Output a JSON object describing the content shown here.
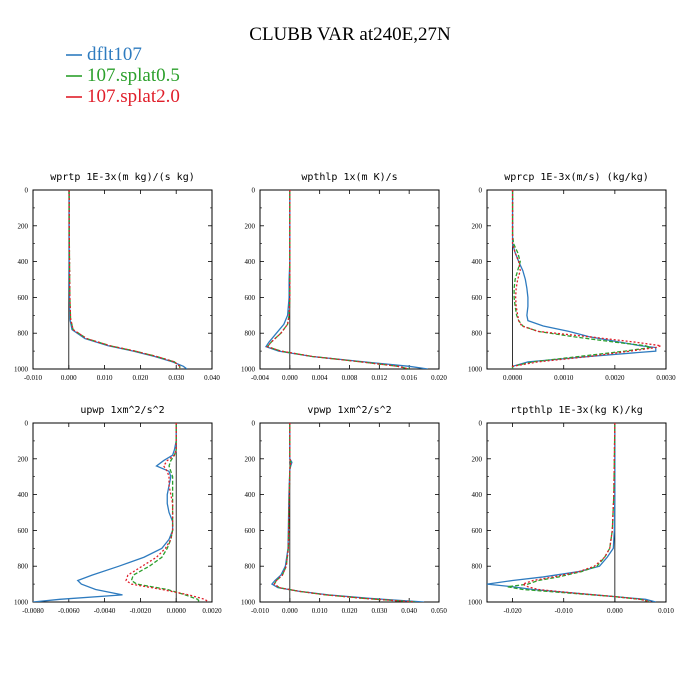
{
  "figure": {
    "title": "CLUBB VAR at240E,27N"
  },
  "legend": [
    {
      "label": "dflt107",
      "color": "#2e7bbf"
    },
    {
      "label": "107.splat0.5",
      "color": "#2ca02c"
    },
    {
      "label": "107.splat2.0",
      "color": "#e01e2a"
    }
  ],
  "chart_data": [
    {
      "type": "line",
      "title": "wprtp  1E-3x(m kg)/(s kg)",
      "xlim": [
        -0.01,
        0.04
      ],
      "ylim": [
        1000,
        0
      ],
      "xticks": [
        "-0.010",
        "0.000",
        "0.010",
        "0.020",
        "0.030",
        "0.040"
      ],
      "yticks": [
        "0",
        "200",
        "400",
        "600",
        "800",
        "1000"
      ],
      "y": [
        0,
        200,
        400,
        600,
        720,
        780,
        830,
        870,
        900,
        930,
        960,
        985,
        1000
      ],
      "series": [
        {
          "name": "dflt107",
          "values": [
            0.0001,
            0.0001,
            0.0001,
            0.0002,
            0.0003,
            0.0009,
            0.0045,
            0.011,
            0.018,
            0.024,
            0.029,
            0.032,
            0.033
          ]
        },
        {
          "name": "107.splat0.5",
          "values": [
            0.0001,
            0.0001,
            0.0002,
            0.0003,
            0.0005,
            0.0012,
            0.005,
            0.0115,
            0.0185,
            0.0245,
            0.0295,
            0.031,
            0.031
          ]
        },
        {
          "name": "107.splat2.0",
          "values": [
            0.0001,
            0.0001,
            0.0002,
            0.0003,
            0.0005,
            0.0012,
            0.005,
            0.0115,
            0.0185,
            0.0245,
            0.0295,
            0.031,
            0.031
          ]
        }
      ]
    },
    {
      "type": "line",
      "title": "wpthlp  1x(m K)/s",
      "xlim": [
        -0.004,
        0.02
      ],
      "ylim": [
        1000,
        0
      ],
      "xticks": [
        "-0.004",
        "0.000",
        "0.004",
        "0.008",
        "0.012",
        "0.016",
        "0.020"
      ],
      "yticks": [
        "0",
        "200",
        "400",
        "600",
        "800",
        "1000"
      ],
      "y": [
        0,
        200,
        400,
        500,
        600,
        700,
        750,
        800,
        850,
        875,
        900,
        930,
        960,
        985,
        1000
      ],
      "series": [
        {
          "name": "dflt107",
          "values": [
            0.0,
            0.0,
            0.0,
            -0.0001,
            -0.0001,
            -0.0003,
            -0.0008,
            -0.0018,
            -0.0028,
            -0.0032,
            -0.0015,
            0.003,
            0.01,
            0.016,
            0.0185
          ]
        },
        {
          "name": "107.splat0.5",
          "values": [
            0.0,
            0.0,
            0.0,
            0.0,
            0.0,
            -0.0001,
            -0.0003,
            -0.0012,
            -0.0025,
            -0.003,
            -0.0012,
            0.003,
            0.0095,
            0.0145,
            0.016
          ]
        },
        {
          "name": "107.splat2.0",
          "values": [
            0.0,
            0.0,
            0.0,
            0.0,
            0.0,
            -0.0001,
            -0.0003,
            -0.0012,
            -0.0025,
            -0.003,
            -0.0012,
            0.003,
            0.0095,
            0.0145,
            0.016
          ]
        }
      ]
    },
    {
      "type": "line",
      "title": "wprcp  1E-3x(m/s) (kg/kg)",
      "xlim": [
        -0.0005,
        0.003
      ],
      "ylim": [
        1000,
        0
      ],
      "xticks": [
        "0.0000",
        "0.0010",
        "0.0020",
        "0.0030"
      ],
      "yticks": [
        "0",
        "200",
        "400",
        "600",
        "800",
        "1000"
      ],
      "y": [
        0,
        250,
        300,
        350,
        400,
        450,
        500,
        550,
        600,
        650,
        700,
        730,
        760,
        790,
        820,
        850,
        870,
        880,
        900,
        930,
        960,
        985,
        1000
      ],
      "series": [
        {
          "name": "dflt107",
          "values": [
            0.0,
            0.0,
            0.0,
            5e-05,
            0.00012,
            0.0002,
            0.00025,
            0.00028,
            0.0003,
            0.0003,
            0.00028,
            0.0003,
            0.0006,
            0.0011,
            0.0015,
            0.0021,
            0.0025,
            0.0028,
            0.0028,
            0.0015,
            0.0003,
            0.0,
            0.0
          ]
        },
        {
          "name": "107.splat0.5",
          "values": [
            0.0,
            0.0,
            2e-05,
            0.0001,
            0.00015,
            0.0001,
            5e-05,
            3e-05,
            3e-05,
            5e-05,
            8e-05,
            0.00012,
            0.0002,
            0.0005,
            0.0012,
            0.002,
            0.0026,
            0.0027,
            0.0022,
            0.0013,
            0.0004,
            0.0,
            0.0
          ]
        },
        {
          "name": "107.splat2.0",
          "values": [
            0.0,
            0.0,
            0.0,
            5e-05,
            0.00012,
            0.00015,
            0.0001,
            7e-05,
            6e-05,
            7e-05,
            0.0001,
            0.00012,
            0.00018,
            0.0005,
            0.0015,
            0.0024,
            0.0029,
            0.0028,
            0.0023,
            0.0015,
            0.0005,
            0.0,
            0.0
          ]
        }
      ]
    },
    {
      "type": "line",
      "title": "upwp  1xm^2/s^2",
      "xlim": [
        -0.008,
        0.002
      ],
      "ylim": [
        1000,
        0
      ],
      "xticks": [
        "-0.0080",
        "-0.0060",
        "-0.0040",
        "-0.0020",
        "0.0000",
        "0.0020"
      ],
      "yticks": [
        "0",
        "200",
        "400",
        "600",
        "800",
        "1000"
      ],
      "y": [
        0,
        100,
        150,
        180,
        210,
        240,
        270,
        300,
        350,
        400,
        450,
        500,
        550,
        600,
        650,
        700,
        750,
        800,
        850,
        880,
        900,
        930,
        960,
        985,
        1000
      ],
      "series": [
        {
          "name": "dflt107",
          "values": [
            0.0,
            0.0,
            -0.0001,
            -0.0002,
            -0.0007,
            -0.0011,
            -0.0004,
            -0.0003,
            -0.0004,
            -0.0005,
            -0.0005,
            -0.0004,
            -0.0002,
            -0.0002,
            -0.0004,
            -0.0008,
            -0.0018,
            -0.0032,
            -0.0047,
            -0.0055,
            -0.0053,
            -0.0045,
            -0.003,
            -0.0065,
            -0.008
          ]
        },
        {
          "name": "107.splat0.5",
          "values": [
            0.0,
            0.0,
            0.0,
            -0.0001,
            -0.0003,
            -0.0004,
            -0.0003,
            -0.0002,
            -0.0002,
            -0.0002,
            -0.0002,
            -0.0002,
            -0.0002,
            -0.0002,
            -0.0003,
            -0.0005,
            -0.0008,
            -0.0015,
            -0.0024,
            -0.0025,
            -0.0022,
            -0.0005,
            0.0005,
            0.0012,
            0.0013
          ]
        },
        {
          "name": "107.splat2.0",
          "values": [
            0.0,
            0.0,
            0.0,
            -0.0001,
            -0.0005,
            -0.0007,
            -0.0005,
            -0.0004,
            -0.0004,
            -0.0003,
            -0.0002,
            -0.0002,
            -0.0002,
            -0.0002,
            -0.0003,
            -0.0006,
            -0.0011,
            -0.0019,
            -0.0027,
            -0.0028,
            -0.0025,
            -0.0008,
            0.0007,
            0.0016,
            0.0018
          ]
        }
      ]
    },
    {
      "type": "line",
      "title": "vpwp  1xm^2/s^2",
      "xlim": [
        -0.01,
        0.05
      ],
      "ylim": [
        1000,
        0
      ],
      "xticks": [
        "-0.010",
        "0.000",
        "0.010",
        "0.020",
        "0.030",
        "0.040",
        "0.050"
      ],
      "yticks": [
        "0",
        "200",
        "400",
        "600",
        "800",
        "1000"
      ],
      "y": [
        0,
        200,
        220,
        240,
        260,
        400,
        700,
        800,
        850,
        880,
        900,
        920,
        940,
        960,
        980,
        1000
      ],
      "series": [
        {
          "name": "dflt107",
          "values": [
            0.0,
            0.0,
            0.0007,
            0.0003,
            0.0,
            -0.0003,
            -0.0006,
            -0.0015,
            -0.003,
            -0.005,
            -0.006,
            -0.004,
            0.003,
            0.013,
            0.027,
            0.045
          ]
        },
        {
          "name": "107.splat0.5",
          "values": [
            0.0,
            0.0,
            0.0003,
            0.0001,
            0.0,
            -0.0002,
            -0.0005,
            -0.0012,
            -0.0025,
            -0.0045,
            -0.0052,
            -0.0035,
            0.003,
            0.012,
            0.025,
            0.042
          ]
        },
        {
          "name": "107.splat2.0",
          "values": [
            0.0,
            0.0,
            0.0003,
            0.0001,
            0.0,
            -0.0002,
            -0.0005,
            -0.0012,
            -0.0025,
            -0.0045,
            -0.0052,
            -0.0035,
            0.003,
            0.012,
            0.025,
            0.042
          ]
        }
      ]
    },
    {
      "type": "line",
      "title": "rtpthlp  1E-3x(kg K)/kg",
      "xlim": [
        -0.025,
        0.01
      ],
      "ylim": [
        1000,
        0
      ],
      "xticks": [
        "-0.020",
        "-0.010",
        "0.000",
        "0.010"
      ],
      "yticks": [
        "0",
        "200",
        "400",
        "600",
        "800",
        "1000"
      ],
      "y": [
        0,
        400,
        600,
        700,
        750,
        800,
        830,
        860,
        880,
        900,
        915,
        930,
        950,
        970,
        985,
        1000
      ],
      "series": [
        {
          "name": "dflt107",
          "values": [
            0.0,
            0.0,
            -0.0001,
            -0.0003,
            -0.0015,
            -0.003,
            -0.007,
            -0.014,
            -0.02,
            -0.025,
            -0.02,
            -0.016,
            -0.008,
            0.0,
            0.006,
            0.008
          ]
        },
        {
          "name": "107.splat0.5",
          "values": [
            0.0,
            -0.0002,
            -0.0005,
            -0.001,
            -0.002,
            -0.0035,
            -0.0065,
            -0.011,
            -0.015,
            -0.017,
            -0.021,
            -0.018,
            -0.009,
            0.0,
            0.005,
            0.007
          ]
        },
        {
          "name": "107.splat2.0",
          "values": [
            0.0,
            -0.0002,
            -0.0005,
            -0.001,
            -0.002,
            -0.004,
            -0.007,
            -0.012,
            -0.016,
            -0.018,
            -0.017,
            -0.015,
            -0.008,
            0.0,
            0.005,
            0.007
          ]
        }
      ]
    }
  ]
}
